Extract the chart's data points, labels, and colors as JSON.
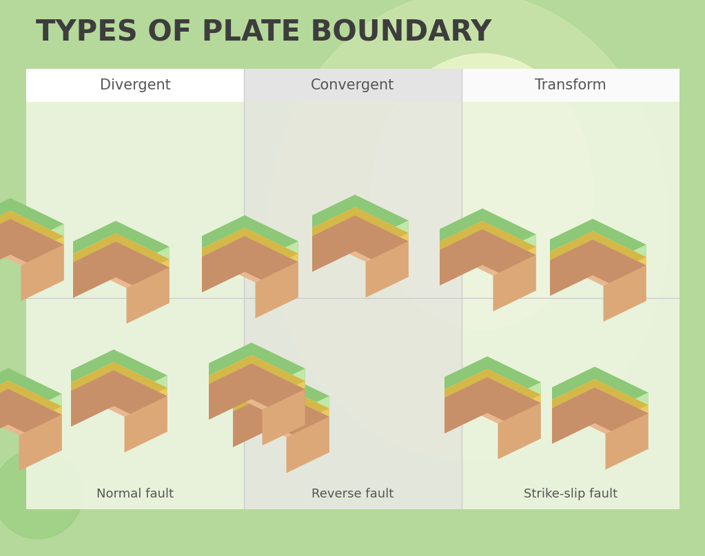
{
  "title": "TYPES OF PLATE BOUNDARY",
  "title_color": "#3d3d3d",
  "bg_color": "#b5d99a",
  "col_labels": [
    "Divergent",
    "Convergent",
    "Transform"
  ],
  "row_labels": [
    "Normal fault",
    "Reverse fault",
    "Strike-slip fault"
  ],
  "gt": "#a8d890",
  "gs": "#8cc878",
  "gl": "#c0e8a8",
  "yt": "#f0d878",
  "ys": "#d4b848",
  "yl": "#e8cc60",
  "st": "#e8b890",
  "ss": "#c89068",
  "sl": "#dca878",
  "panel_left_bg": "#e8f0d8",
  "panel_mid_bg": "#eaeae0",
  "panel_right_bg": "#e8f0d8",
  "header_left": "#ffffff",
  "header_mid": "#e8e8e8",
  "header_right": "#f8f8f8"
}
